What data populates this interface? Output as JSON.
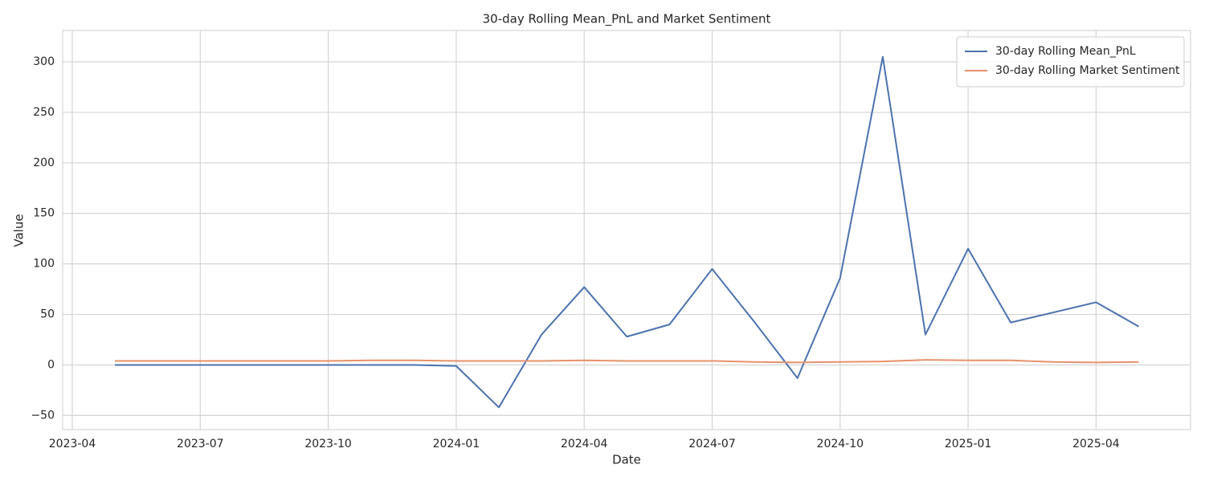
{
  "chart_data": {
    "type": "line",
    "title": "30-day Rolling Mean_PnL and Market Sentiment",
    "xlabel": "Date",
    "ylabel": "Value",
    "x": [
      "2023-05",
      "2023-06",
      "2023-07",
      "2023-08",
      "2023-09",
      "2023-10",
      "2023-11",
      "2023-12",
      "2024-01",
      "2024-02",
      "2024-03",
      "2024-04",
      "2024-05",
      "2024-06",
      "2024-07",
      "2024-08",
      "2024-09",
      "2024-10",
      "2024-11",
      "2024-12",
      "2025-01",
      "2025-02",
      "2025-03",
      "2025-04",
      "2025-05"
    ],
    "series": [
      {
        "name": "30-day Rolling Mean_PnL",
        "color": "#4c72b0",
        "values": [
          0,
          0,
          0,
          0,
          0,
          0,
          0,
          0,
          -1,
          -42,
          30,
          77,
          28,
          40,
          95,
          42,
          -13,
          86,
          305,
          30,
          115,
          42,
          52,
          62,
          38
        ]
      },
      {
        "name": "30-day Rolling Market Sentiment",
        "color": "#e8916a",
        "values": [
          4,
          4,
          4,
          4,
          4,
          4,
          4.5,
          4.5,
          4,
          4,
          4,
          4.5,
          4,
          4,
          4,
          3,
          2.5,
          3,
          3.5,
          5,
          4.5,
          4.5,
          3,
          2.5,
          3
        ]
      }
    ],
    "xticks": [
      "2023-04",
      "2023-07",
      "2023-10",
      "2024-01",
      "2024-04",
      "2024-07",
      "2024-10",
      "2025-01",
      "2025-04"
    ],
    "ylim": [
      -64,
      331
    ],
    "yticks": [
      {
        "value": -50,
        "label": "−50"
      },
      0,
      50,
      100,
      150,
      200,
      250,
      300
    ],
    "grid": true,
    "legend": "upper right"
  }
}
